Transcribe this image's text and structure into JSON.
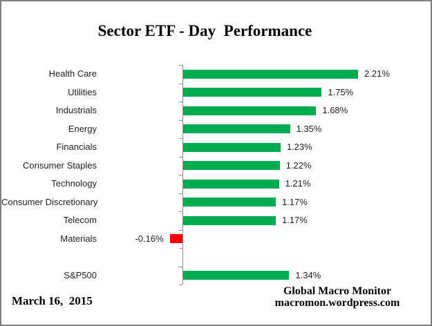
{
  "chart_data": {
    "type": "bar",
    "orientation": "horizontal",
    "title": "Sector ETF - Day  Performance",
    "categories": [
      "Health Care",
      "Utilities",
      "Industrials",
      "Energy",
      "Financials",
      "Consumer Staples",
      "Technology",
      "Consumer Discretionary",
      "Telecom",
      "Materials",
      "",
      "S&P500"
    ],
    "values": [
      2.21,
      1.75,
      1.68,
      1.35,
      1.23,
      1.22,
      1.21,
      1.17,
      1.17,
      -0.16,
      null,
      1.34
    ],
    "value_labels": [
      "2.21%",
      "1.75%",
      "1.68%",
      "1.35%",
      "1.23%",
      "1.22%",
      "1.21%",
      "1.17%",
      "1.17%",
      "-0.16%",
      "",
      "1.34%"
    ],
    "value_suffix": "%",
    "xlabel": "",
    "ylabel": "",
    "xlim": [
      -0.3,
      2.6
    ],
    "grid": "off",
    "legend": "none",
    "positive_color": "#00ac50",
    "negative_color": "#ff0000",
    "axis_color": "#8b8b8b"
  },
  "footer": {
    "date": "March 16,  2015",
    "credit_line1": "Global Macro Monitor",
    "credit_line2": "macromon.wordpress.com"
  }
}
